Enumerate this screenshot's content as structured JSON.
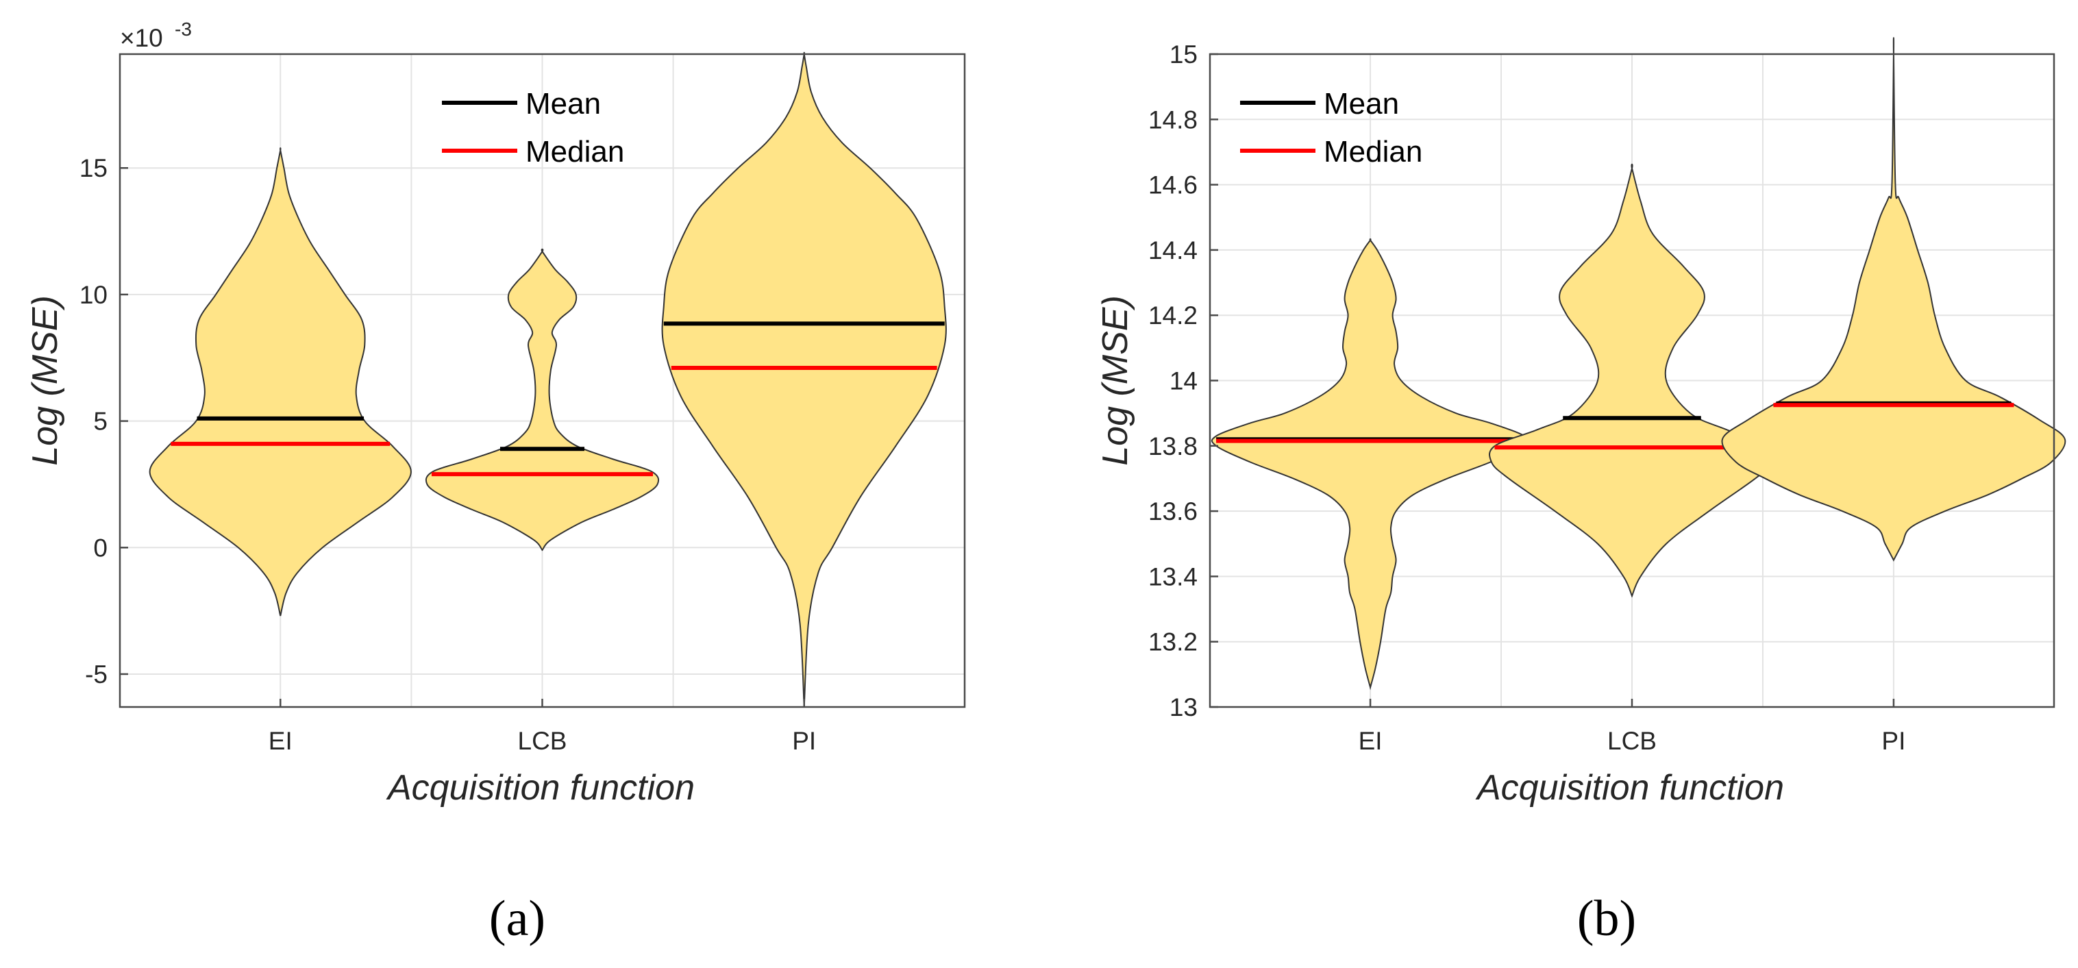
{
  "chart_data": [
    {
      "type": "violin",
      "panel": "a",
      "caption": "(a)",
      "xlabel": "Acquisition function",
      "ylabel": "Log (MSE)",
      "exponent_label": "×10",
      "exponent_power": "-3",
      "ylim": [
        -6.3,
        19.5
      ],
      "yticks": [
        -5,
        0,
        5,
        10,
        15
      ],
      "ytick_labels": [
        "-5",
        "0",
        "5",
        "10",
        "15"
      ],
      "categories": [
        "EI",
        "LCB",
        "PI"
      ],
      "legend": {
        "position": "top-center",
        "entries": [
          {
            "label": "Mean",
            "color": "#000000"
          },
          {
            "label": "Median",
            "color": "#ff0000"
          }
        ]
      },
      "violins": [
        {
          "category": "EI",
          "mean": 5.1,
          "median": 4.1,
          "profile": [
            [
              -2.7,
              0
            ],
            [
              -1.8,
              0.04
            ],
            [
              -1.0,
              0.12
            ],
            [
              0,
              0.3
            ],
            [
              1,
              0.55
            ],
            [
              2,
              0.8
            ],
            [
              3,
              0.93
            ],
            [
              4,
              0.8
            ],
            [
              5,
              0.6
            ],
            [
              6,
              0.54
            ],
            [
              7,
              0.56
            ],
            [
              8,
              0.6
            ],
            [
              9,
              0.58
            ],
            [
              10,
              0.46
            ],
            [
              11,
              0.34
            ],
            [
              12,
              0.22
            ],
            [
              13,
              0.13
            ],
            [
              14,
              0.06
            ],
            [
              15,
              0.025
            ],
            [
              15.7,
              0
            ]
          ]
        },
        {
          "category": "LCB",
          "mean": 3.9,
          "median": 2.9,
          "profile": [
            [
              -0.1,
              0
            ],
            [
              0.3,
              0.06
            ],
            [
              1,
              0.28
            ],
            [
              1.5,
              0.5
            ],
            [
              2,
              0.7
            ],
            [
              2.5,
              0.82
            ],
            [
              3,
              0.78
            ],
            [
              3.5,
              0.5
            ],
            [
              4,
              0.25
            ],
            [
              4.5,
              0.13
            ],
            [
              5,
              0.08
            ],
            [
              6,
              0.05
            ],
            [
              7,
              0.06
            ],
            [
              8,
              0.1
            ],
            [
              8.5,
              0.07
            ],
            [
              9,
              0.12
            ],
            [
              9.5,
              0.22
            ],
            [
              10,
              0.24
            ],
            [
              10.5,
              0.18
            ],
            [
              11,
              0.09
            ],
            [
              11.7,
              0
            ]
          ]
        },
        {
          "category": "PI",
          "mean": 8.85,
          "median": 7.1,
          "profile": [
            [
              -6.3,
              0
            ],
            [
              -3,
              0.03
            ],
            [
              -1,
              0.1
            ],
            [
              0,
              0.2
            ],
            [
              2,
              0.4
            ],
            [
              4,
              0.65
            ],
            [
              6,
              0.88
            ],
            [
              8,
              1.0
            ],
            [
              9.5,
              1.0
            ],
            [
              11,
              0.96
            ],
            [
              13,
              0.8
            ],
            [
              14,
              0.65
            ],
            [
              15,
              0.47
            ],
            [
              16,
              0.27
            ],
            [
              17,
              0.13
            ],
            [
              18,
              0.05
            ],
            [
              19,
              0.015
            ],
            [
              19.5,
              0
            ]
          ]
        }
      ]
    },
    {
      "type": "violin",
      "panel": "b",
      "caption": "(b)",
      "xlabel": "Acquisition function",
      "ylabel": "Log (MSE)",
      "ylim": [
        13,
        15
      ],
      "yticks": [
        13,
        13.2,
        13.4,
        13.6,
        13.8,
        14,
        14.2,
        14.4,
        14.6,
        14.8,
        15
      ],
      "ytick_labels": [
        "13",
        "13.2",
        "13.4",
        "13.6",
        "13.8",
        "14",
        "14.2",
        "14.4",
        "14.6",
        "14.8",
        "15"
      ],
      "categories": [
        "EI",
        "LCB",
        "PI"
      ],
      "legend": {
        "position": "top-left",
        "entries": [
          {
            "label": "Mean",
            "color": "#000000"
          },
          {
            "label": "Median",
            "color": "#ff0000"
          }
        ]
      },
      "violins": [
        {
          "category": "EI",
          "mean": 13.82,
          "median": 13.815,
          "profile": [
            [
              13.06,
              0
            ],
            [
              13.12,
              0.03
            ],
            [
              13.2,
              0.06
            ],
            [
              13.3,
              0.09
            ],
            [
              13.35,
              0.12
            ],
            [
              13.4,
              0.13
            ],
            [
              13.45,
              0.15
            ],
            [
              13.5,
              0.13
            ],
            [
              13.55,
              0.12
            ],
            [
              13.6,
              0.15
            ],
            [
              13.65,
              0.25
            ],
            [
              13.7,
              0.45
            ],
            [
              13.75,
              0.7
            ],
            [
              13.8,
              0.9
            ],
            [
              13.83,
              0.9
            ],
            [
              13.87,
              0.7
            ],
            [
              13.9,
              0.5
            ],
            [
              13.95,
              0.3
            ],
            [
              14.0,
              0.18
            ],
            [
              14.05,
              0.14
            ],
            [
              14.1,
              0.16
            ],
            [
              14.15,
              0.15
            ],
            [
              14.2,
              0.13
            ],
            [
              14.25,
              0.15
            ],
            [
              14.3,
              0.13
            ],
            [
              14.35,
              0.09
            ],
            [
              14.4,
              0.04
            ],
            [
              14.43,
              0
            ]
          ]
        },
        {
          "category": "LCB",
          "mean": 13.885,
          "median": 13.795,
          "profile": [
            [
              13.34,
              0
            ],
            [
              13.4,
              0.05
            ],
            [
              13.5,
              0.2
            ],
            [
              13.6,
              0.45
            ],
            [
              13.7,
              0.72
            ],
            [
              13.75,
              0.82
            ],
            [
              13.8,
              0.8
            ],
            [
              13.85,
              0.55
            ],
            [
              13.9,
              0.34
            ],
            [
              14.0,
              0.2
            ],
            [
              14.1,
              0.24
            ],
            [
              14.2,
              0.38
            ],
            [
              14.27,
              0.42
            ],
            [
              14.35,
              0.3
            ],
            [
              14.45,
              0.12
            ],
            [
              14.55,
              0.05
            ],
            [
              14.65,
              0
            ]
          ]
        },
        {
          "category": "PI",
          "mean": 13.93,
          "median": 13.925,
          "profile": [
            [
              13.45,
              0
            ],
            [
              13.5,
              0.05
            ],
            [
              13.55,
              0.1
            ],
            [
              13.6,
              0.3
            ],
            [
              13.65,
              0.55
            ],
            [
              13.7,
              0.75
            ],
            [
              13.75,
              0.92
            ],
            [
              13.82,
              1.0
            ],
            [
              13.88,
              0.85
            ],
            [
              13.95,
              0.62
            ],
            [
              14.0,
              0.42
            ],
            [
              14.1,
              0.3
            ],
            [
              14.2,
              0.24
            ],
            [
              14.3,
              0.2
            ],
            [
              14.4,
              0.14
            ],
            [
              14.5,
              0.08
            ],
            [
              14.56,
              0.03
            ],
            [
              14.6,
              0.01
            ],
            [
              15.0,
              0
            ]
          ]
        }
      ]
    }
  ]
}
